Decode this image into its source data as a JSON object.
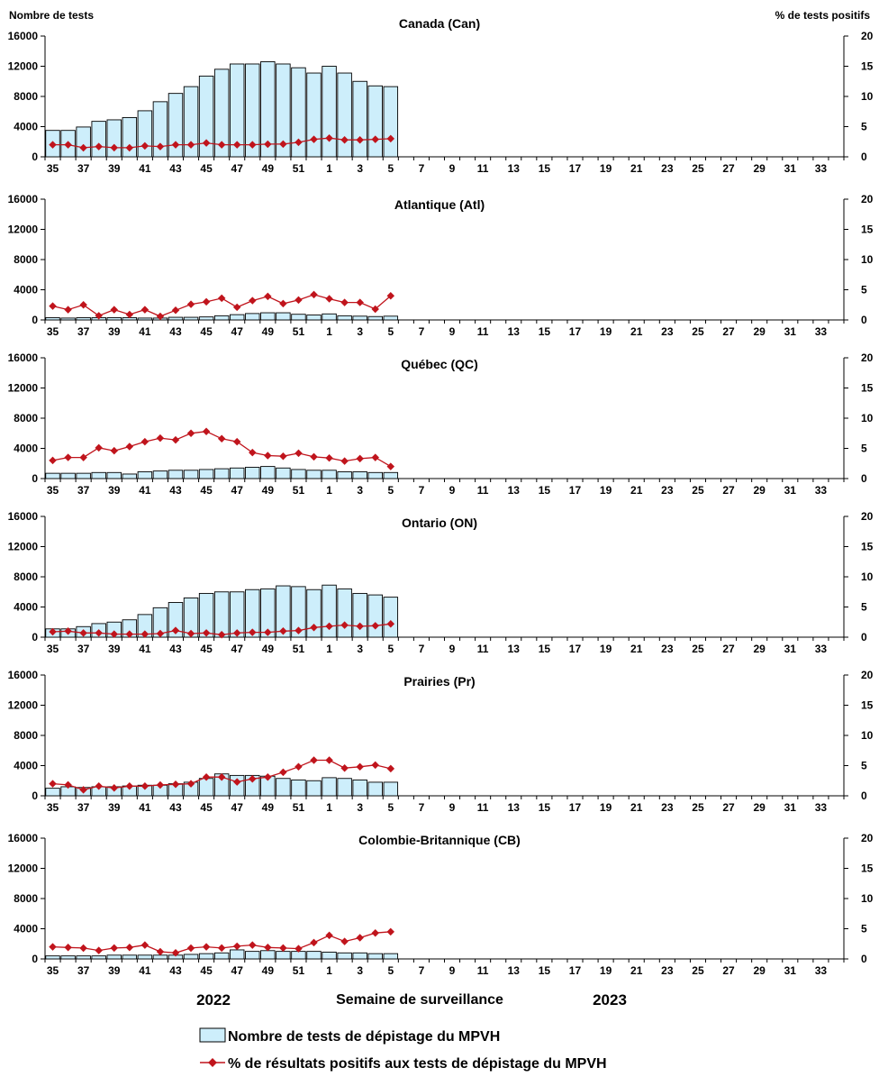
{
  "axis_titles": {
    "left": "Nombre de tests",
    "right": "% de tests positifs"
  },
  "footer": {
    "year_left": "2022",
    "year_right": "2023",
    "x_title": "Semaine de surveillance"
  },
  "legend": {
    "bar_label": "Nombre de tests de dépistage du MPVH",
    "line_label": "% de résultats positifs aux tests de dépistage du MPVH"
  },
  "colors": {
    "bar_fill": "#cdeefb",
    "bar_stroke": "#000000",
    "line": "#c0141c"
  },
  "chart_data": [
    {
      "type": "bar",
      "title": "Canada (Can)",
      "ylim_left": [
        0,
        16000
      ],
      "ylim_right": [
        0,
        20
      ],
      "yticks_left": [
        "0",
        "4000",
        "8000",
        "12000",
        "16000"
      ],
      "yticks_right": [
        "0",
        "5",
        "10",
        "15",
        "20"
      ],
      "weeks": [
        35,
        36,
        37,
        38,
        39,
        40,
        41,
        42,
        43,
        44,
        45,
        46,
        47,
        48,
        49,
        50,
        51,
        52,
        1,
        2,
        3,
        4,
        5,
        6,
        7,
        8,
        9,
        10,
        11,
        12,
        13,
        14,
        15,
        16,
        17,
        18,
        19,
        20,
        21,
        22,
        23,
        24,
        25,
        26,
        27,
        28,
        29,
        30,
        31,
        32,
        33,
        34
      ],
      "xtick_labels": [
        "35",
        "37",
        "39",
        "41",
        "43",
        "45",
        "47",
        "49",
        "51",
        "1",
        "3",
        "5",
        "7",
        "9",
        "11",
        "13",
        "15",
        "17",
        "19",
        "21",
        "23",
        "25",
        "27",
        "29",
        "31",
        "33"
      ],
      "series": [
        {
          "name": "Nombre de tests de dépistage du MPVH",
          "axis": "left",
          "values": [
            3500,
            3500,
            3950,
            4700,
            4900,
            5200,
            6100,
            7300,
            8400,
            9300,
            10700,
            11600,
            12300,
            12300,
            12600,
            12300,
            11800,
            11100,
            12000,
            11100,
            10000,
            9400,
            9300
          ]
        },
        {
          "name": "% de résultats positifs aux tests de dépistage du MPVH",
          "axis": "right",
          "values": [
            2.0,
            2.0,
            1.5,
            1.7,
            1.5,
            1.5,
            1.8,
            1.7,
            2.0,
            2.0,
            2.3,
            2.0,
            2.0,
            2.0,
            2.1,
            2.1,
            2.4,
            2.9,
            3.1,
            2.8,
            2.8,
            2.9,
            3.0
          ]
        }
      ]
    },
    {
      "type": "bar",
      "title": "Atlantique (Atl)",
      "ylim_left": [
        0,
        16000
      ],
      "ylim_right": [
        0,
        20
      ],
      "yticks_left": [
        "0",
        "4000",
        "8000",
        "12000",
        "16000"
      ],
      "yticks_right": [
        "0",
        "5",
        "10",
        "15",
        "20"
      ],
      "weeks": [
        35,
        36,
        37,
        38,
        39,
        40,
        41,
        42,
        43,
        44,
        45,
        46,
        47,
        48,
        49,
        50,
        51,
        52,
        1,
        2,
        3,
        4,
        5,
        6,
        7,
        8,
        9,
        10,
        11,
        12,
        13,
        14,
        15,
        16,
        17,
        18,
        19,
        20,
        21,
        22,
        23,
        24,
        25,
        26,
        27,
        28,
        29,
        30,
        31,
        32,
        33,
        34
      ],
      "xtick_labels": [
        "35",
        "37",
        "39",
        "41",
        "43",
        "45",
        "47",
        "49",
        "51",
        "1",
        "3",
        "5",
        "7",
        "9",
        "11",
        "13",
        "15",
        "17",
        "19",
        "21",
        "23",
        "25",
        "27",
        "29",
        "31",
        "33"
      ],
      "series": [
        {
          "name": "Nombre de tests de dépistage du MPVH",
          "axis": "left",
          "values": [
            300,
            250,
            300,
            300,
            300,
            300,
            250,
            250,
            350,
            350,
            400,
            550,
            700,
            850,
            950,
            950,
            750,
            650,
            800,
            550,
            500,
            450,
            500
          ]
        },
        {
          "name": "% de résultats positifs aux tests de dépistage du MPVH",
          "axis": "right",
          "values": [
            2.3,
            1.7,
            2.5,
            0.7,
            1.7,
            0.9,
            1.7,
            0.6,
            1.6,
            2.6,
            3.0,
            3.6,
            2.1,
            3.2,
            3.9,
            2.7,
            3.3,
            4.2,
            3.5,
            2.9,
            2.9,
            1.8,
            4.0
          ]
        }
      ]
    },
    {
      "type": "bar",
      "title": "Québec (QC)",
      "ylim_left": [
        0,
        16000
      ],
      "ylim_right": [
        0,
        20
      ],
      "yticks_left": [
        "0",
        "4000",
        "8000",
        "12000",
        "16000"
      ],
      "yticks_right": [
        "0",
        "5",
        "10",
        "15",
        "20"
      ],
      "weeks": [
        35,
        36,
        37,
        38,
        39,
        40,
        41,
        42,
        43,
        44,
        45,
        46,
        47,
        48,
        49,
        50,
        51,
        52,
        1,
        2,
        3,
        4,
        5,
        6,
        7,
        8,
        9,
        10,
        11,
        12,
        13,
        14,
        15,
        16,
        17,
        18,
        19,
        20,
        21,
        22,
        23,
        24,
        25,
        26,
        27,
        28,
        29,
        30,
        31,
        32,
        33,
        34
      ],
      "xtick_labels": [
        "35",
        "37",
        "39",
        "41",
        "43",
        "45",
        "47",
        "49",
        "51",
        "1",
        "3",
        "5",
        "7",
        "9",
        "11",
        "13",
        "15",
        "17",
        "19",
        "21",
        "23",
        "25",
        "27",
        "29",
        "31",
        "33"
      ],
      "series": [
        {
          "name": "Nombre de tests de dépistage du MPVH",
          "axis": "left",
          "values": [
            700,
            700,
            700,
            800,
            800,
            600,
            900,
            1000,
            1100,
            1100,
            1200,
            1300,
            1400,
            1500,
            1600,
            1400,
            1200,
            1100,
            1100,
            900,
            900,
            800,
            800
          ]
        },
        {
          "name": "% de résultats positifs aux tests de dépistage du MPVH",
          "axis": "right",
          "values": [
            3.0,
            3.5,
            3.5,
            5.1,
            4.6,
            5.3,
            6.1,
            6.7,
            6.4,
            7.5,
            7.8,
            6.6,
            6.1,
            4.3,
            3.8,
            3.7,
            4.2,
            3.6,
            3.4,
            2.9,
            3.3,
            3.5,
            2.0
          ]
        }
      ]
    },
    {
      "type": "bar",
      "title": "Ontario (ON)",
      "ylim_left": [
        0,
        16000
      ],
      "ylim_right": [
        0,
        20
      ],
      "yticks_left": [
        "0",
        "4000",
        "8000",
        "12000",
        "16000"
      ],
      "yticks_right": [
        "0",
        "5",
        "10",
        "15",
        "20"
      ],
      "weeks": [
        35,
        36,
        37,
        38,
        39,
        40,
        41,
        42,
        43,
        44,
        45,
        46,
        47,
        48,
        49,
        50,
        51,
        52,
        1,
        2,
        3,
        4,
        5,
        6,
        7,
        8,
        9,
        10,
        11,
        12,
        13,
        14,
        15,
        16,
        17,
        18,
        19,
        20,
        21,
        22,
        23,
        24,
        25,
        26,
        27,
        28,
        29,
        30,
        31,
        32,
        33,
        34
      ],
      "xtick_labels": [
        "35",
        "37",
        "39",
        "41",
        "43",
        "45",
        "47",
        "49",
        "51",
        "1",
        "3",
        "5",
        "7",
        "9",
        "11",
        "13",
        "15",
        "17",
        "19",
        "21",
        "23",
        "25",
        "27",
        "29",
        "31",
        "33"
      ],
      "series": [
        {
          "name": "Nombre de tests de dépistage du MPVH",
          "axis": "left",
          "values": [
            1100,
            1100,
            1400,
            1800,
            2000,
            2300,
            3000,
            3900,
            4600,
            5200,
            5800,
            6000,
            6000,
            6300,
            6400,
            6800,
            6700,
            6300,
            6900,
            6400,
            5800,
            5600,
            5300
          ]
        },
        {
          "name": "% de résultats positifs aux tests de dépistage du MPVH",
          "axis": "right",
          "values": [
            0.9,
            1.0,
            0.7,
            0.7,
            0.5,
            0.5,
            0.5,
            0.6,
            1.1,
            0.6,
            0.7,
            0.4,
            0.7,
            0.8,
            0.8,
            1.0,
            1.1,
            1.6,
            1.8,
            2.0,
            1.8,
            1.9,
            2.2
          ]
        }
      ]
    },
    {
      "type": "bar",
      "title": "Prairies (Pr)",
      "ylim_left": [
        0,
        16000
      ],
      "ylim_right": [
        0,
        20
      ],
      "yticks_left": [
        "0",
        "4000",
        "8000",
        "12000",
        "16000"
      ],
      "yticks_right": [
        "0",
        "5",
        "10",
        "15",
        "20"
      ],
      "weeks": [
        35,
        36,
        37,
        38,
        39,
        40,
        41,
        42,
        43,
        44,
        45,
        46,
        47,
        48,
        49,
        50,
        51,
        52,
        1,
        2,
        3,
        4,
        5,
        6,
        7,
        8,
        9,
        10,
        11,
        12,
        13,
        14,
        15,
        16,
        17,
        18,
        19,
        20,
        21,
        22,
        23,
        24,
        25,
        26,
        27,
        28,
        29,
        30,
        31,
        32,
        33,
        34
      ],
      "xtick_labels": [
        "35",
        "37",
        "39",
        "41",
        "43",
        "45",
        "47",
        "49",
        "51",
        "1",
        "3",
        "5",
        "7",
        "9",
        "11",
        "13",
        "15",
        "17",
        "19",
        "21",
        "23",
        "25",
        "27",
        "29",
        "31",
        "33"
      ],
      "series": [
        {
          "name": "Nombre de tests de dépistage du MPVH",
          "axis": "left",
          "values": [
            1000,
            1200,
            1100,
            1200,
            1200,
            1300,
            1400,
            1400,
            1600,
            1800,
            2300,
            2900,
            2700,
            2700,
            2600,
            2300,
            2100,
            2000,
            2400,
            2300,
            2100,
            1800,
            1800
          ]
        },
        {
          "name": "% de résultats positifs aux tests de dépistage du MPVH",
          "axis": "right",
          "values": [
            2.0,
            1.8,
            1.0,
            1.6,
            1.3,
            1.6,
            1.6,
            1.8,
            1.9,
            2.0,
            3.1,
            3.1,
            2.3,
            2.8,
            3.1,
            3.9,
            4.8,
            5.9,
            5.9,
            4.6,
            4.8,
            5.1,
            4.5
          ]
        }
      ]
    },
    {
      "type": "bar",
      "title": "Colombie-Britannique (CB)",
      "ylim_left": [
        0,
        16000
      ],
      "ylim_right": [
        0,
        20
      ],
      "yticks_left": [
        "0",
        "4000",
        "8000",
        "12000",
        "16000"
      ],
      "yticks_right": [
        "0",
        "5",
        "10",
        "15",
        "20"
      ],
      "weeks": [
        35,
        36,
        37,
        38,
        39,
        40,
        41,
        42,
        43,
        44,
        45,
        46,
        47,
        48,
        49,
        50,
        51,
        52,
        1,
        2,
        3,
        4,
        5,
        6,
        7,
        8,
        9,
        10,
        11,
        12,
        13,
        14,
        15,
        16,
        17,
        18,
        19,
        20,
        21,
        22,
        23,
        24,
        25,
        26,
        27,
        28,
        29,
        30,
        31,
        32,
        33,
        34
      ],
      "xtick_labels": [
        "35",
        "37",
        "39",
        "41",
        "43",
        "45",
        "47",
        "49",
        "51",
        "1",
        "3",
        "5",
        "7",
        "9",
        "11",
        "13",
        "15",
        "17",
        "19",
        "21",
        "23",
        "25",
        "27",
        "29",
        "31",
        "33"
      ],
      "series": [
        {
          "name": "Nombre de tests de dépistage du MPVH",
          "axis": "left",
          "values": [
            400,
            400,
            400,
            400,
            500,
            500,
            500,
            500,
            500,
            600,
            700,
            800,
            1200,
            1000,
            1100,
            1000,
            1000,
            1000,
            900,
            800,
            800,
            700,
            700
          ]
        },
        {
          "name": "% de résultats positifs aux tests de dépistage du MPVH",
          "axis": "right",
          "values": [
            2.0,
            1.9,
            1.8,
            1.4,
            1.8,
            1.9,
            2.3,
            1.2,
            1.0,
            1.8,
            2.0,
            1.8,
            2.1,
            2.3,
            1.9,
            1.8,
            1.7,
            2.7,
            3.9,
            2.9,
            3.5,
            4.3,
            4.5
          ]
        }
      ]
    }
  ]
}
